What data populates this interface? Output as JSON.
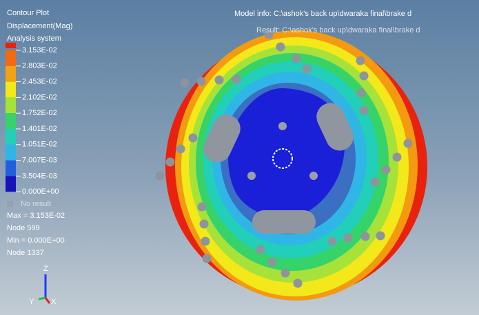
{
  "panel": {
    "lines": [
      "Contour Plot",
      "Displacement(Mag)",
      "Analysis system"
    ]
  },
  "legend": {
    "labels": [
      "3.153E-02",
      "2.803E-02",
      "2.453E-02",
      "2.102E-02",
      "1.752E-02",
      "1.401E-02",
      "1.051E-02",
      "7.007E-03",
      "3.504E-03",
      "0.000E+00"
    ],
    "no_result": "No result"
  },
  "stats": [
    "Max = 3.153E-02",
    "Node 599",
    "Min = 0.000E+00",
    "Node 1337"
  ],
  "model_info": "Model info: C:\\ashok's back up\\dwaraka final\\brake d",
  "result_info": "Result: C:\\ashok's back up\\dwaraka final\\brake d",
  "triad": {
    "z": "Z",
    "y": "Y",
    "x": "X"
  }
}
